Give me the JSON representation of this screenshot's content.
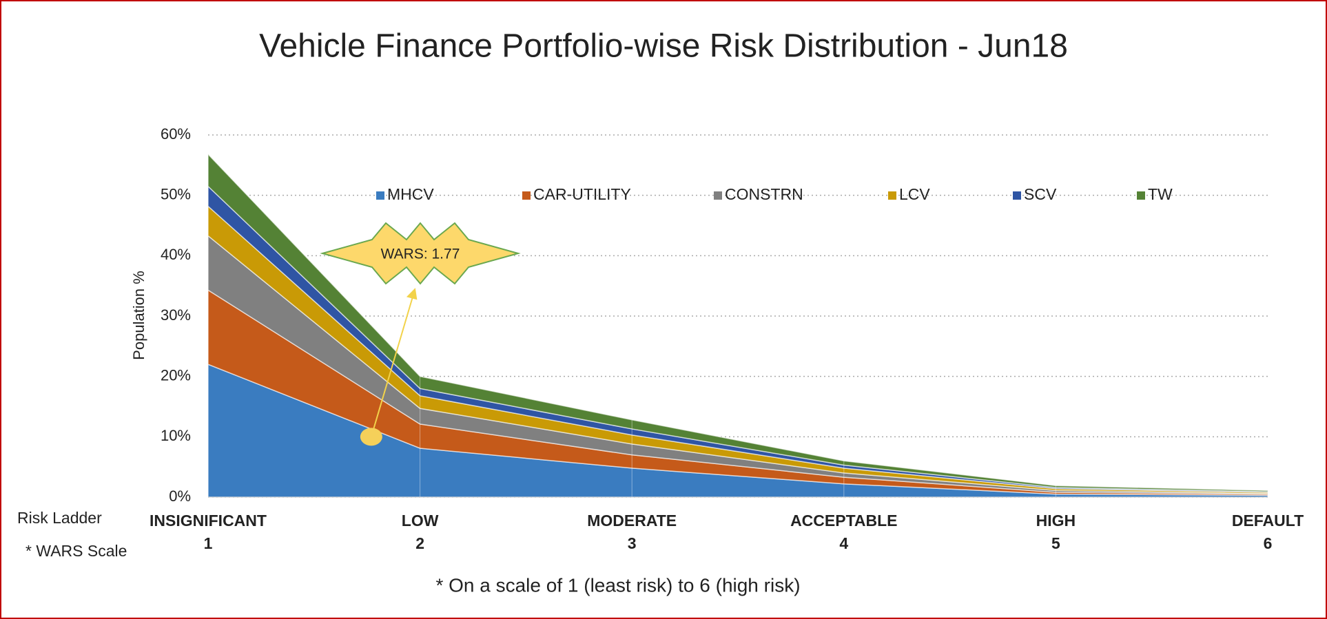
{
  "chart_data": {
    "type": "stacked_area",
    "title": "Vehicle Finance Portfolio-wise Risk Distribution - Jun18",
    "y_label": "Population %",
    "row_labels": [
      "Risk Ladder",
      "* WARS Scale"
    ],
    "categories": [
      "INSIGNIFICANT",
      "LOW",
      "MODERATE",
      "ACCEPTABLE",
      "HIGH",
      "DEFAULT"
    ],
    "wars_scale": [
      1,
      2,
      3,
      4,
      5,
      6
    ],
    "series": [
      {
        "name": "MHCV",
        "color": "#3a7cc0",
        "values": [
          22,
          8.1,
          4.8,
          2.2,
          0.5,
          0.3
        ]
      },
      {
        "name": "CAR-UTILITY",
        "color": "#c55a1a",
        "values": [
          12.3,
          4,
          2.2,
          1.1,
          0.3,
          0.2
        ]
      },
      {
        "name": "CONSTRN",
        "color": "#808080",
        "values": [
          9,
          2.6,
          1.8,
          0.7,
          0.3,
          0.1
        ]
      },
      {
        "name": "LCV",
        "color": "#c99a06",
        "values": [
          4.9,
          2.1,
          1.5,
          0.8,
          0.3,
          0.2
        ]
      },
      {
        "name": "SCV",
        "color": "#2f55a4",
        "values": [
          3.3,
          1.2,
          1,
          0.5,
          0.2,
          0.1
        ]
      },
      {
        "name": "TW",
        "color": "#548235",
        "values": [
          5.3,
          2,
          1.5,
          0.7,
          0.3,
          0.2
        ]
      }
    ],
    "ylim": [
      0,
      60
    ],
    "yticks": [
      {
        "value": 0,
        "label": "0%"
      },
      {
        "value": 10,
        "label": "10%"
      },
      {
        "value": 20,
        "label": "20%"
      },
      {
        "value": 30,
        "label": "30%"
      },
      {
        "value": 40,
        "label": "40%"
      },
      {
        "value": 50,
        "label": "50%"
      },
      {
        "value": 60,
        "label": "60%"
      }
    ],
    "grid": true,
    "legend": "top",
    "annotation": {
      "text": "WARS: 1.77",
      "x": 1.77,
      "y": 10
    },
    "footnote": "* On a scale of 1 (least risk) to 6 (high risk)"
  }
}
